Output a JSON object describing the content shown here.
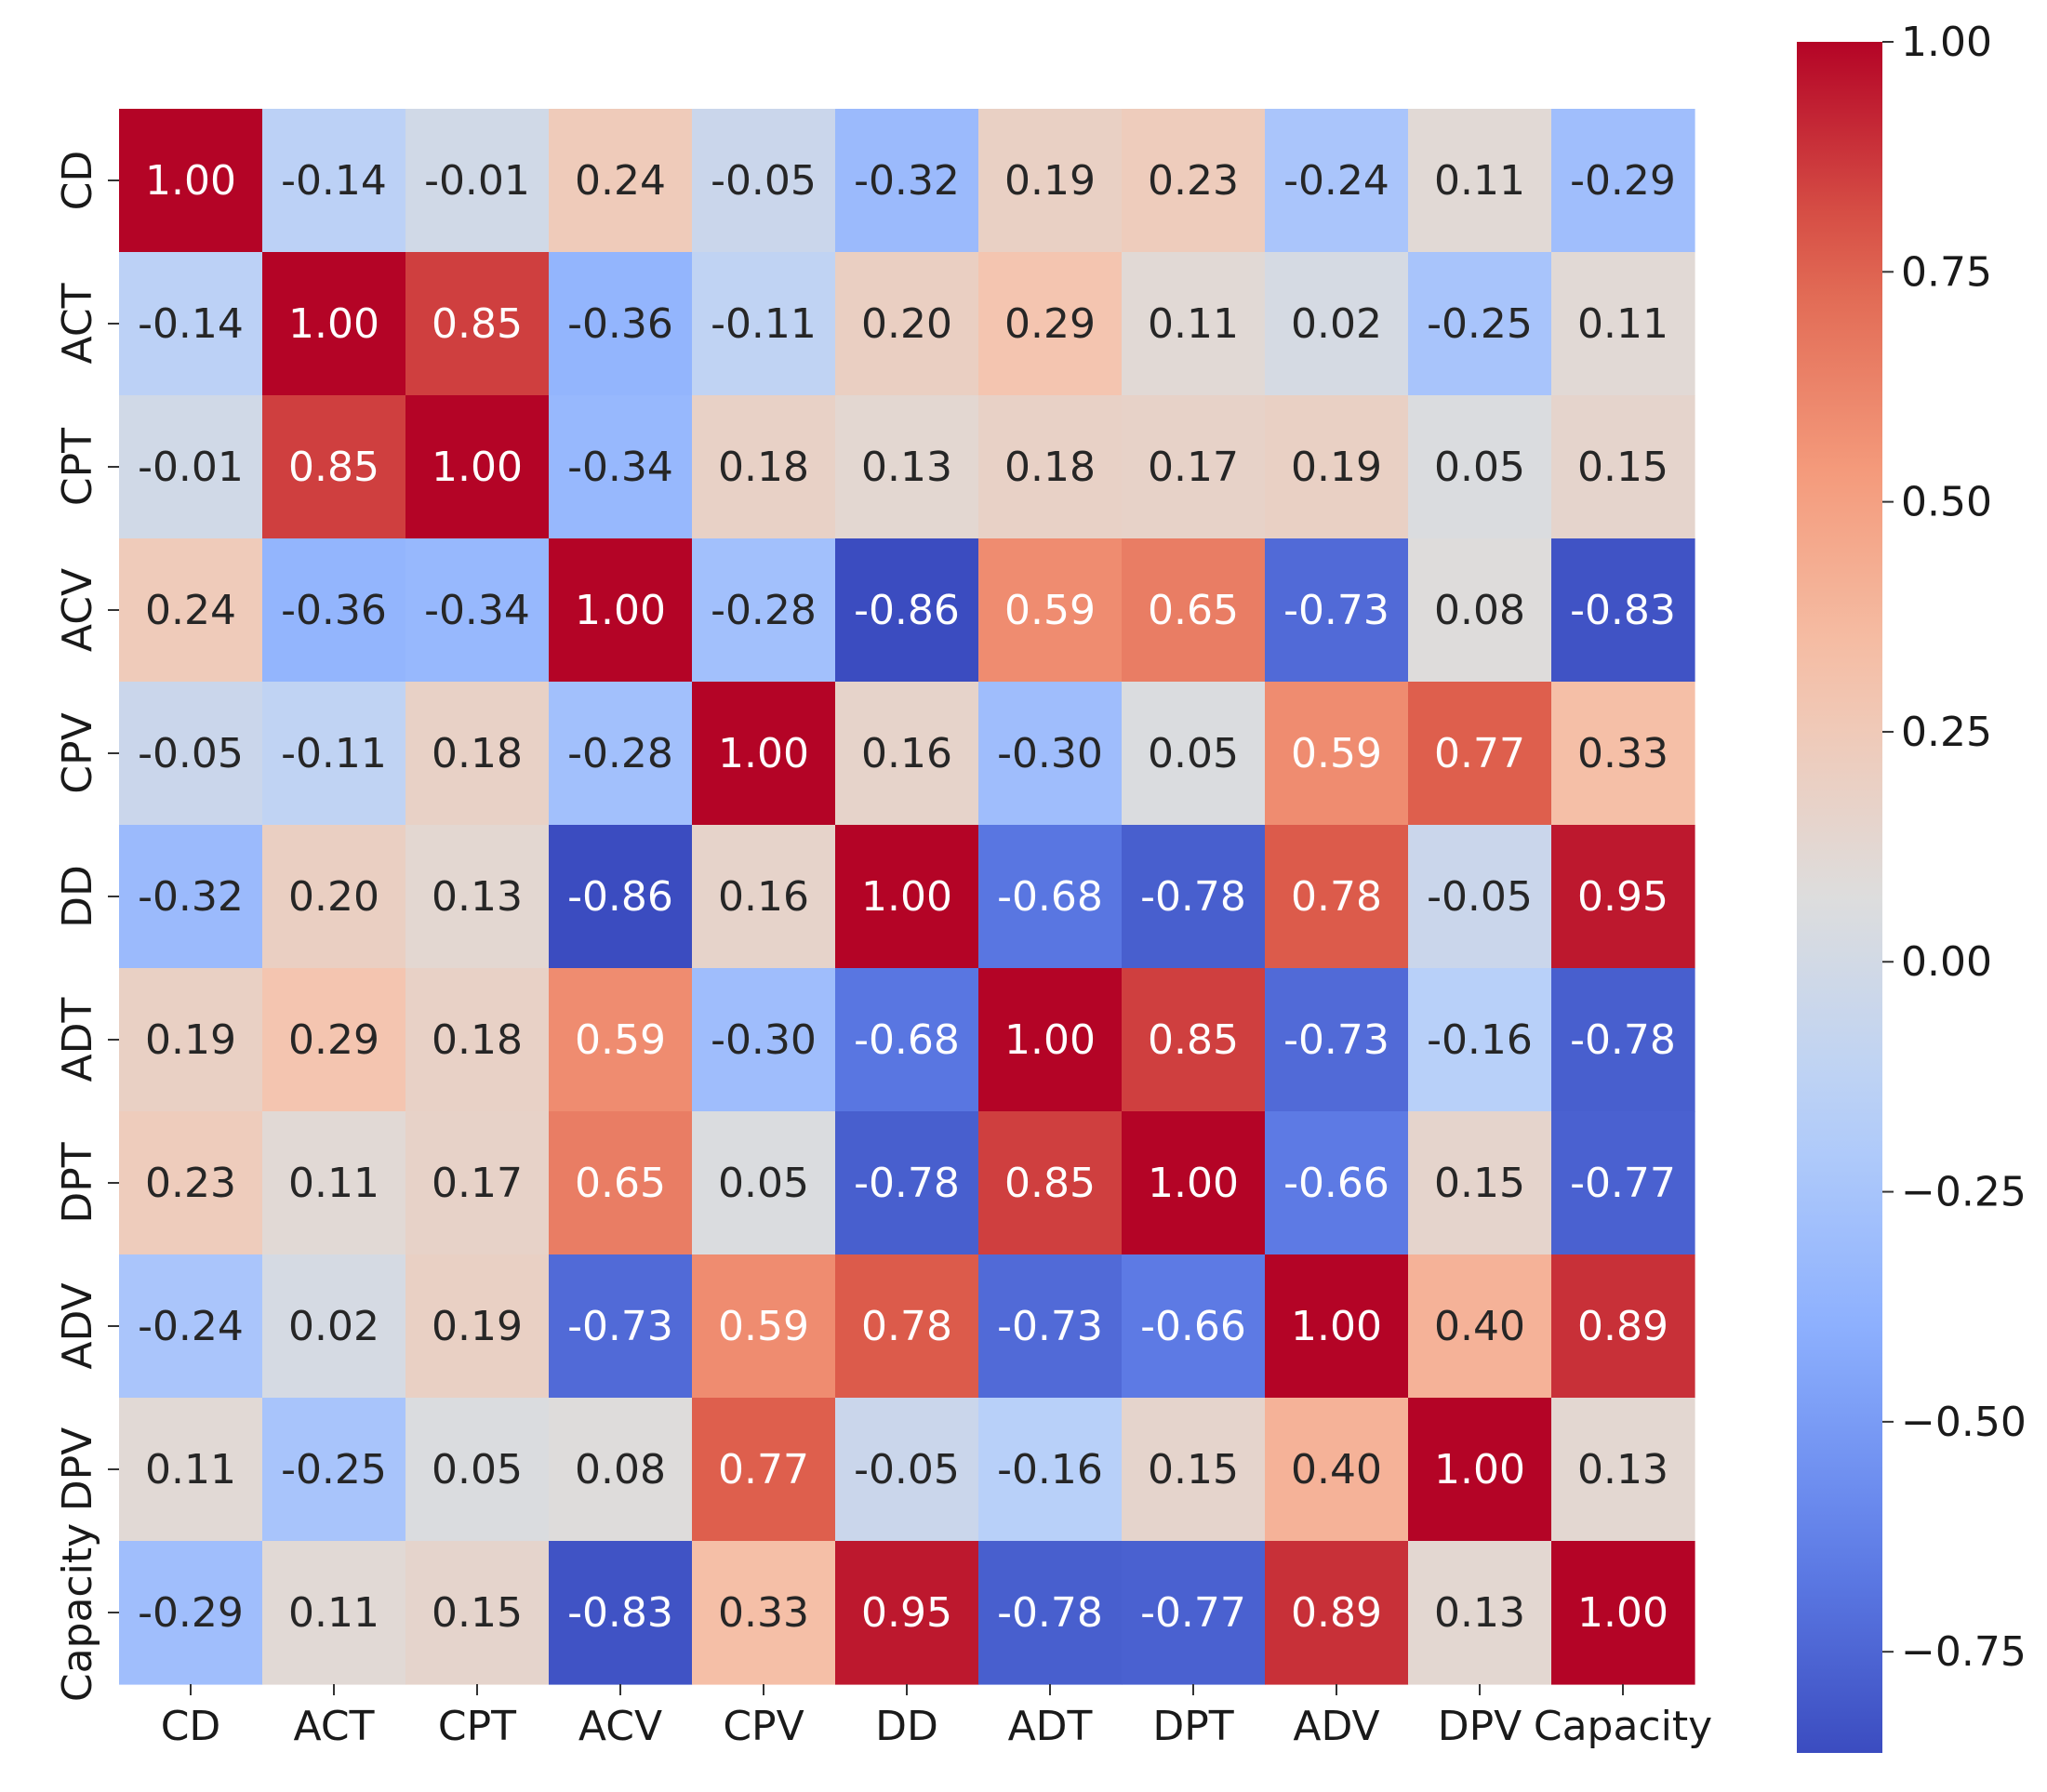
{
  "chart_data": {
    "type": "heatmap",
    "title": "",
    "xlabel": "",
    "ylabel": "",
    "labels": [
      "CD",
      "ACT",
      "CPT",
      "ACV",
      "CPV",
      "DD",
      "ADT",
      "DPT",
      "ADV",
      "DPV",
      "Capacity"
    ],
    "matrix": [
      [
        1.0,
        -0.14,
        -0.01,
        0.24,
        -0.05,
        -0.32,
        0.19,
        0.23,
        -0.24,
        0.11,
        -0.29
      ],
      [
        -0.14,
        1.0,
        0.85,
        -0.36,
        -0.11,
        0.2,
        0.29,
        0.11,
        0.02,
        -0.25,
        0.11
      ],
      [
        -0.01,
        0.85,
        1.0,
        -0.34,
        0.18,
        0.13,
        0.18,
        0.17,
        0.19,
        0.05,
        0.15
      ],
      [
        0.24,
        -0.36,
        -0.34,
        1.0,
        -0.28,
        -0.86,
        0.59,
        0.65,
        -0.73,
        0.08,
        -0.83
      ],
      [
        -0.05,
        -0.11,
        0.18,
        -0.28,
        1.0,
        0.16,
        -0.3,
        0.05,
        0.59,
        0.77,
        0.33
      ],
      [
        -0.32,
        0.2,
        0.13,
        -0.86,
        0.16,
        1.0,
        -0.68,
        -0.78,
        0.78,
        -0.05,
        0.95
      ],
      [
        0.19,
        0.29,
        0.18,
        0.59,
        -0.3,
        -0.68,
        1.0,
        0.85,
        -0.73,
        -0.16,
        -0.78
      ],
      [
        0.23,
        0.11,
        0.17,
        0.65,
        0.05,
        -0.78,
        0.85,
        1.0,
        -0.66,
        0.15,
        -0.77
      ],
      [
        -0.24,
        0.02,
        0.19,
        -0.73,
        0.59,
        0.78,
        -0.73,
        -0.66,
        1.0,
        0.4,
        0.89
      ],
      [
        0.11,
        -0.25,
        0.05,
        0.08,
        0.77,
        -0.05,
        -0.16,
        0.15,
        0.4,
        1.0,
        0.13
      ],
      [
        -0.29,
        0.11,
        0.15,
        -0.83,
        0.33,
        0.95,
        -0.78,
        -0.77,
        0.89,
        0.13,
        1.0
      ]
    ],
    "colormap": "coolwarm",
    "vmin": -0.86,
    "vmax": 1.0,
    "colorbar_ticks": [
      1.0,
      0.75,
      0.5,
      0.25,
      0.0,
      -0.25,
      -0.5,
      -0.75
    ],
    "colorbar_tick_labels": [
      "1.00",
      "0.75",
      "0.50",
      "0.25",
      "0.00",
      "−0.25",
      "−0.50",
      "−0.75"
    ],
    "value_format": "2 decimals"
  }
}
